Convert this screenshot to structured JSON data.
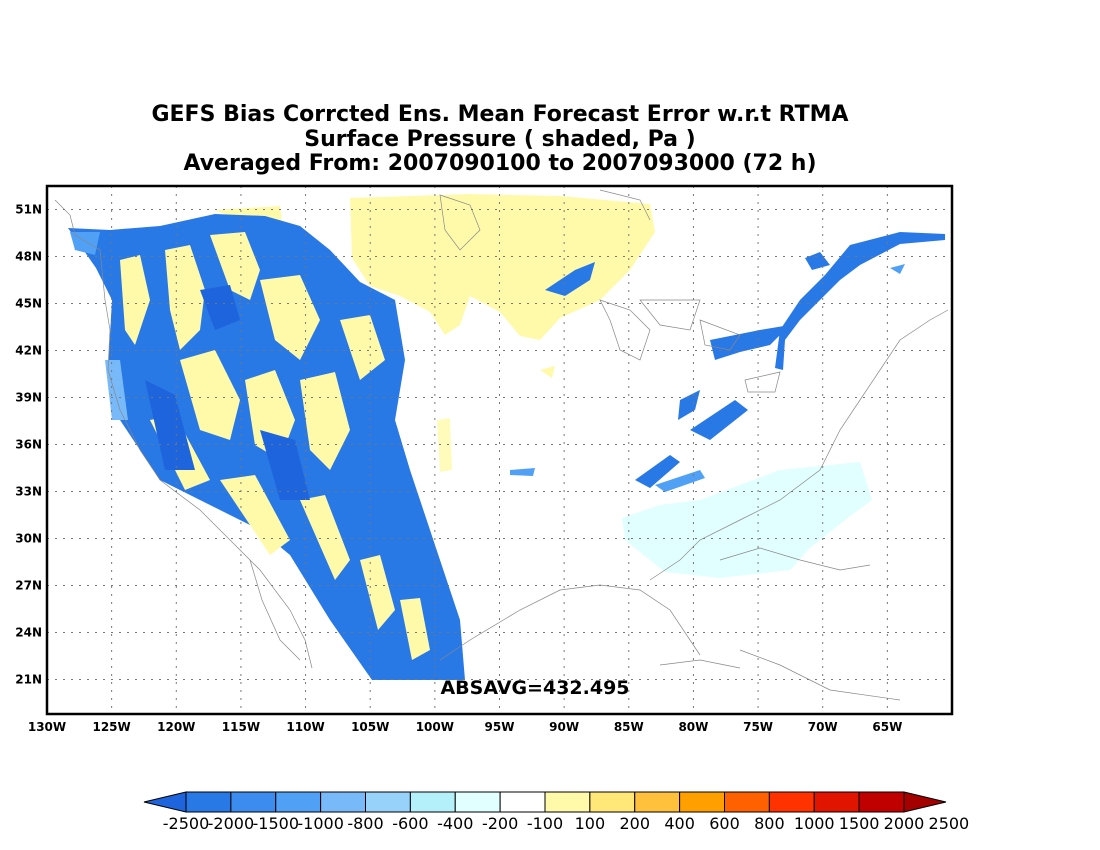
{
  "title": {
    "line1": "GEFS Bias Corrcted Ens. Mean Forecast Error w.r.t RTMA",
    "line2": "Surface Pressure ( shaded, Pa )",
    "line3": "Averaged From: 2007090100 to 2007093000 (72 h)"
  },
  "map": {
    "lon_range": [
      -130,
      -60
    ],
    "lat_range": [
      18.8,
      52.5
    ],
    "lon_ticks": [
      -130,
      -125,
      -120,
      -115,
      -110,
      -105,
      -100,
      -95,
      -90,
      -85,
      -80,
      -75,
      -70,
      -65
    ],
    "lon_labels": [
      "130W",
      "125W",
      "120W",
      "115W",
      "110W",
      "105W",
      "100W",
      "95W",
      "90W",
      "85W",
      "80W",
      "75W",
      "70W",
      "65W"
    ],
    "lat_ticks": [
      21,
      24,
      27,
      30,
      33,
      36,
      39,
      42,
      45,
      48,
      51
    ],
    "lat_labels": [
      "21N",
      "24N",
      "27N",
      "30N",
      "33N",
      "36N",
      "39N",
      "42N",
      "45N",
      "48N",
      "51N"
    ],
    "grid": true,
    "annotation": "ABSAVG=432.495"
  },
  "colorbar": {
    "labels": [
      "-2500",
      "-2000",
      "-1500",
      "-1000",
      "-800",
      "-600",
      "-400",
      "-200",
      "-100",
      "100",
      "200",
      "400",
      "600",
      "800",
      "1000",
      "1500",
      "2000",
      "2500"
    ],
    "colors": [
      "#1e64dc",
      "#2878e6",
      "#3c8cf0",
      "#50a0f5",
      "#78b9fa",
      "#96d2fa",
      "#b4f0fa",
      "#e1ffff",
      "#ffffff",
      "#fffaaa",
      "#ffe878",
      "#ffc03c",
      "#ffa000",
      "#ff6000",
      "#ff3200",
      "#e11400",
      "#c00000",
      "#a50000"
    ]
  }
}
